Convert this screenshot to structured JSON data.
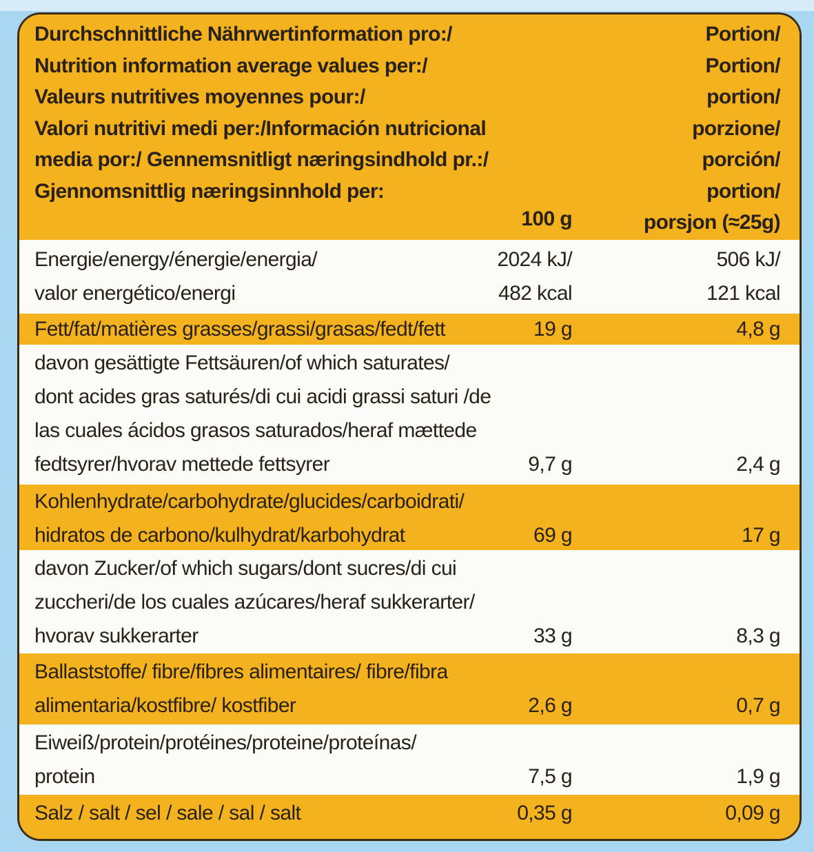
{
  "colors": {
    "yellow": "#f4b21f",
    "white": "#fbfbf8",
    "border": "#3a2d18",
    "background": "#a9d6f0"
  },
  "header": {
    "label": "Durchschnittliche Nährwertinformation pro:/\nNutrition information average values per:/\nValeurs nutritives moyennes pour:/\nValori nutritivi medi per:/Información nutricional\nmedia por:/ Gennemsnitligt næringsindhold pr.:/\nGjennomsnittlig næringsinnhold per:",
    "col1": "100 g",
    "col2": "Portion/\nPortion/\nportion/\nporzione/\nporción/\nportion/\nporsjon (≈25g)"
  },
  "rows": [
    {
      "label": "Energie/energy/énergie/energia/\nvalor energético/energi",
      "per100": "2024 kJ/\n482 kcal",
      "perPortion": "506 kJ/\n121 kcal"
    },
    {
      "label": "Fett/fat/matières grasses/grassi/grasas/fedt/fett",
      "per100": "19 g",
      "perPortion": "4,8 g"
    },
    {
      "label": "davon gesättigte Fettsäuren/of which saturates/\ndont acides gras saturés/di cui acidi grassi saturi /de\nlas cuales ácidos grasos saturados/heraf mættede\nfedtsyrer/hvorav mettede fettsyrer",
      "per100": "9,7 g",
      "perPortion": "2,4 g"
    },
    {
      "label": "Kohlenhydrate/carbohydrate/glucides/carboidrati/\nhidratos de carbono/kulhydrat/karbohydrat",
      "per100": "69 g",
      "perPortion": "17 g"
    },
    {
      "label": "davon Zucker/of which sugars/dont sucres/di cui\nzuccheri/de los cuales azúcares/heraf sukkerarter/\nhvorav sukkerarter",
      "per100": "33 g",
      "perPortion": "8,3 g"
    },
    {
      "label": "Ballaststoffe/ fibre/fibres alimentaires/ fibre/fibra\nalimentaria/kostfibre/ kostfiber",
      "per100": "2,6 g",
      "perPortion": "0,7 g"
    },
    {
      "label": "Eiweiß/protein/protéines/proteine/proteínas/\nprotein",
      "per100": "7,5 g",
      "perPortion": "1,9 g"
    },
    {
      "label": "Salz / salt / sel / sale / sal / salt",
      "per100": "0,35 g",
      "perPortion": "0,09 g"
    }
  ]
}
